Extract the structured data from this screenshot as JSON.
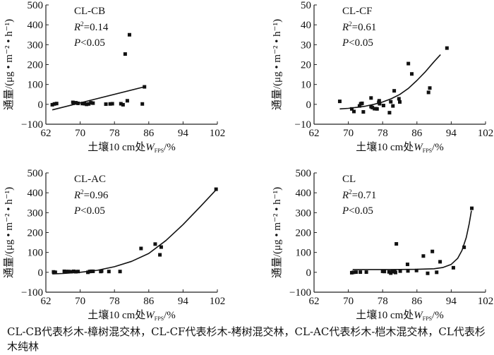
{
  "chart_data": [
    {
      "type": "scatter",
      "panel_label": "CL-CB",
      "r2_label": "R",
      "r2_value": "=0.14",
      "p_label": "P",
      "p_value": "<0.05",
      "xlabel_prefix": "土壤10 cm处",
      "xlabel_var": "W",
      "xlabel_sub": "FPS",
      "xlabel_suffix": "/%",
      "ylabel": "通量/(μg • m⁻² • h⁻¹)",
      "xlim": [
        62,
        102
      ],
      "ylim": [
        -100,
        500
      ],
      "xticks": [
        "62",
        "70",
        "78",
        "86",
        "94",
        "102"
      ],
      "yticks": [
        "−100",
        "0",
        "100",
        "200",
        "300",
        "400",
        "500"
      ],
      "fit": "linear",
      "fit_curve": [
        [
          63.5,
          -28
        ],
        [
          85,
          88
        ]
      ],
      "points": [
        [
          63.5,
          -2
        ],
        [
          64,
          2
        ],
        [
          64.5,
          4
        ],
        [
          68.3,
          10
        ],
        [
          68.5,
          6
        ],
        [
          69,
          8
        ],
        [
          69.5,
          5
        ],
        [
          70.5,
          4
        ],
        [
          71,
          3
        ],
        [
          71.5,
          0
        ],
        [
          72,
          2
        ],
        [
          72.5,
          8
        ],
        [
          73,
          6
        ],
        [
          76,
          1
        ],
        [
          77,
          2
        ],
        [
          77.5,
          3
        ],
        [
          79.5,
          3
        ],
        [
          80,
          -2
        ],
        [
          80.5,
          253
        ],
        [
          81,
          18
        ],
        [
          81.5,
          350
        ],
        [
          84.5,
          2
        ],
        [
          85,
          88
        ]
      ]
    },
    {
      "type": "scatter",
      "panel_label": "CL-CF",
      "r2_label": "R",
      "r2_value": "=0.61",
      "p_label": "P",
      "p_value": "<0.05",
      "xlabel_prefix": "土壤10 cm处",
      "xlabel_var": "W",
      "xlabel_sub": "FPS",
      "xlabel_suffix": "/%",
      "ylabel": "通量/(μg • m⁻² • h⁻¹)",
      "xlim": [
        62,
        102
      ],
      "ylim": [
        -10,
        50
      ],
      "xticks": [
        "62",
        "70",
        "78",
        "86",
        "94",
        "102"
      ],
      "yticks": [
        "−10",
        "0",
        "10",
        "20",
        "30",
        "40",
        "50"
      ],
      "fit": "exponential",
      "fit_curve": [
        [
          68,
          -2.3
        ],
        [
          70,
          -2.0
        ],
        [
          72,
          -1.5
        ],
        [
          74,
          -0.9
        ],
        [
          76,
          0
        ],
        [
          78,
          1.2
        ],
        [
          80,
          2.8
        ],
        [
          82,
          5
        ],
        [
          84,
          8
        ],
        [
          86,
          12
        ],
        [
          88,
          16.5
        ],
        [
          90,
          21.5
        ],
        [
          91.5,
          25
        ]
      ],
      "points": [
        [
          68,
          1.5
        ],
        [
          70.8,
          -2.3
        ],
        [
          71.3,
          -3.6
        ],
        [
          72.6,
          -0.8
        ],
        [
          72.9,
          0.3
        ],
        [
          73.2,
          0.5
        ],
        [
          73.5,
          -3.8
        ],
        [
          75.3,
          3.2
        ],
        [
          75.3,
          -1.2
        ],
        [
          75.6,
          -1.6
        ],
        [
          76.1,
          -2.2
        ],
        [
          76.4,
          -2.2
        ],
        [
          76.7,
          -2.3
        ],
        [
          77.1,
          1.0
        ],
        [
          77.2,
          1.8
        ],
        [
          77.3,
          0.3
        ],
        [
          78.2,
          -0.6
        ],
        [
          79.6,
          -4.2
        ],
        [
          79.9,
          1.3
        ],
        [
          80.4,
          -0.8
        ],
        [
          80.7,
          6.8
        ],
        [
          81.8,
          2.8
        ],
        [
          82,
          1.2
        ],
        [
          84,
          20.5
        ],
        [
          84.8,
          15.3
        ],
        [
          88.7,
          6.0
        ],
        [
          89,
          8.2
        ],
        [
          93,
          28.3
        ]
      ]
    },
    {
      "type": "scatter",
      "panel_label": "CL-AC",
      "r2_label": "R",
      "r2_value": "=0.96",
      "p_label": "P",
      "p_value": "<0.05",
      "xlabel_prefix": "土壤10 cm处",
      "xlabel_var": "W",
      "xlabel_sub": "FPS",
      "xlabel_suffix": "/%",
      "ylabel": "通量/(μg • m⁻² • h⁻¹)",
      "xlim": [
        62,
        102
      ],
      "ylim": [
        -100,
        500
      ],
      "xticks": [
        "62",
        "70",
        "78",
        "86",
        "94",
        "102"
      ],
      "yticks": [
        "−100",
        "0",
        "100",
        "200",
        "300",
        "400",
        "500"
      ],
      "fit": "exponential",
      "fit_curve": [
        [
          63.5,
          -8
        ],
        [
          66,
          -6
        ],
        [
          70,
          0
        ],
        [
          74,
          10
        ],
        [
          78,
          28
        ],
        [
          82,
          55
        ],
        [
          86,
          95
        ],
        [
          90,
          160
        ],
        [
          94,
          240
        ],
        [
          98,
          330
        ],
        [
          101.7,
          415
        ]
      ],
      "points": [
        [
          63.8,
          2
        ],
        [
          64.2,
          0
        ],
        [
          66.3,
          5
        ],
        [
          66.8,
          4
        ],
        [
          67.3,
          4
        ],
        [
          67.8,
          3
        ],
        [
          68.5,
          5
        ],
        [
          69,
          3
        ],
        [
          69.5,
          4
        ],
        [
          71.8,
          0
        ],
        [
          72.2,
          4
        ],
        [
          72.6,
          5
        ],
        [
          73,
          5
        ],
        [
          74.8,
          4
        ],
        [
          75,
          6
        ],
        [
          76.7,
          4
        ],
        [
          79.3,
          4
        ],
        [
          84.2,
          120
        ],
        [
          87.5,
          142
        ],
        [
          88.6,
          88
        ],
        [
          88.9,
          127
        ],
        [
          101.7,
          418
        ]
      ]
    },
    {
      "type": "scatter",
      "panel_label": "CL",
      "r2_label": "R",
      "r2_value": "=0.71",
      "p_label": "P",
      "p_value": "<0.05",
      "xlabel_prefix": "土壤10 cm处",
      "xlabel_var": "W",
      "xlabel_sub": "FPS",
      "xlabel_suffix": "/%",
      "ylabel": "通量/(μg • m⁻² • h⁻¹)",
      "xlim": [
        62,
        102
      ],
      "ylim": [
        -100,
        500
      ],
      "xticks": [
        "62",
        "70",
        "78",
        "86",
        "94",
        "102"
      ],
      "yticks": [
        "−100",
        "0",
        "100",
        "200",
        "300",
        "400",
        "500"
      ],
      "fit": "exponential",
      "fit_curve": [
        [
          71,
          14
        ],
        [
          80,
          14
        ],
        [
          86,
          15
        ],
        [
          90,
          18
        ],
        [
          92,
          24
        ],
        [
          94,
          40
        ],
        [
          95.5,
          70
        ],
        [
          96.5,
          110
        ],
        [
          97.5,
          175
        ],
        [
          98.2,
          245
        ],
        [
          98.7,
          310
        ]
      ],
      "points": [
        [
          70.8,
          -2
        ],
        [
          71.2,
          0
        ],
        [
          71.8,
          1
        ],
        [
          72.8,
          1
        ],
        [
          74.2,
          1
        ],
        [
          78,
          5
        ],
        [
          78.4,
          4
        ],
        [
          79.5,
          2
        ],
        [
          79.9,
          -4
        ],
        [
          80.3,
          3
        ],
        [
          80.8,
          4
        ],
        [
          81,
          -1
        ],
        [
          81.2,
          143
        ],
        [
          82.1,
          6
        ],
        [
          83.8,
          40
        ],
        [
          83.9,
          7
        ],
        [
          85.9,
          9
        ],
        [
          87.5,
          82
        ],
        [
          88.5,
          -5
        ],
        [
          89.6,
          105
        ],
        [
          90.6,
          0
        ],
        [
          91.4,
          53
        ],
        [
          94.5,
          23
        ],
        [
          97,
          126
        ],
        [
          98.8,
          322
        ]
      ]
    }
  ],
  "caption": "CL-CB代表杉木-樟树混交林，CL-CF代表杉木-栲树混交林，CL-AC代表杉木-桤木混交林，CL代表杉木纯林"
}
